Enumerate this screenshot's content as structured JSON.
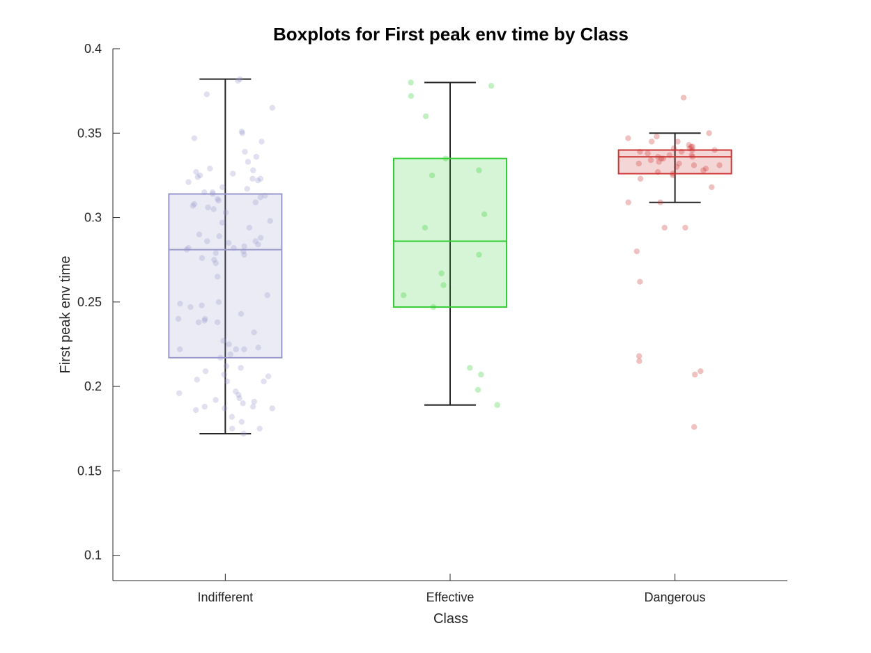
{
  "chart_data": {
    "type": "box",
    "title": "Boxplots for First peak env time by Class",
    "xlabel": "Class",
    "ylabel": "First peak env time",
    "ylim": [
      0.085,
      0.4
    ],
    "yticks": [
      "0.1",
      "0.15",
      "0.2",
      "0.25",
      "0.3",
      "0.35",
      "0.4"
    ],
    "ytick_values": [
      0.1,
      0.15,
      0.2,
      0.25,
      0.3,
      0.35,
      0.4
    ],
    "categories": [
      "Indifferent",
      "Effective",
      "Dangerous"
    ],
    "grid": false,
    "boxes": [
      {
        "category": "Indifferent",
        "color": "#9999cc",
        "whisker_low": 0.172,
        "q1": 0.217,
        "median": 0.281,
        "q3": 0.314,
        "whisker_high": 0.382,
        "points": [
          0.382,
          0.373,
          0.381,
          0.365,
          0.35,
          0.351,
          0.347,
          0.345,
          0.339,
          0.336,
          0.333,
          0.329,
          0.328,
          0.327,
          0.326,
          0.325,
          0.324,
          0.323,
          0.323,
          0.322,
          0.321,
          0.318,
          0.317,
          0.315,
          0.315,
          0.314,
          0.313,
          0.312,
          0.311,
          0.31,
          0.309,
          0.308,
          0.307,
          0.306,
          0.305,
          0.303,
          0.298,
          0.297,
          0.294,
          0.29,
          0.289,
          0.288,
          0.286,
          0.286,
          0.285,
          0.284,
          0.283,
          0.282,
          0.282,
          0.281,
          0.28,
          0.279,
          0.278,
          0.276,
          0.275,
          0.273,
          0.265,
          0.254,
          0.25,
          0.249,
          0.248,
          0.247,
          0.243,
          0.24,
          0.24,
          0.239,
          0.238,
          0.238,
          0.232,
          0.227,
          0.225,
          0.223,
          0.222,
          0.222,
          0.222,
          0.219,
          0.217,
          0.212,
          0.211,
          0.209,
          0.207,
          0.206,
          0.204,
          0.203,
          0.203,
          0.197,
          0.196,
          0.195,
          0.193,
          0.192,
          0.191,
          0.19,
          0.188,
          0.188,
          0.187,
          0.187,
          0.186,
          0.182,
          0.179,
          0.175,
          0.175,
          0.172
        ]
      },
      {
        "category": "Effective",
        "color": "#33cc33",
        "whisker_low": 0.189,
        "q1": 0.247,
        "median": 0.286,
        "q3": 0.335,
        "whisker_high": 0.38,
        "points": [
          0.38,
          0.378,
          0.372,
          0.36,
          0.335,
          0.328,
          0.325,
          0.302,
          0.294,
          0.278,
          0.267,
          0.26,
          0.254,
          0.247,
          0.211,
          0.207,
          0.198,
          0.189
        ]
      },
      {
        "category": "Dangerous",
        "color": "#cc3333",
        "whisker_low": 0.309,
        "q1": 0.326,
        "median": 0.336,
        "q3": 0.34,
        "whisker_high": 0.35,
        "points": [
          0.371,
          0.35,
          0.348,
          0.347,
          0.345,
          0.345,
          0.343,
          0.342,
          0.342,
          0.341,
          0.341,
          0.34,
          0.34,
          0.339,
          0.339,
          0.338,
          0.337,
          0.337,
          0.336,
          0.336,
          0.335,
          0.335,
          0.334,
          0.333,
          0.332,
          0.332,
          0.331,
          0.331,
          0.33,
          0.329,
          0.328,
          0.327,
          0.326,
          0.325,
          0.323,
          0.318,
          0.309,
          0.309,
          0.294,
          0.294,
          0.28,
          0.262,
          0.218,
          0.215,
          0.209,
          0.207,
          0.176
        ]
      }
    ]
  }
}
